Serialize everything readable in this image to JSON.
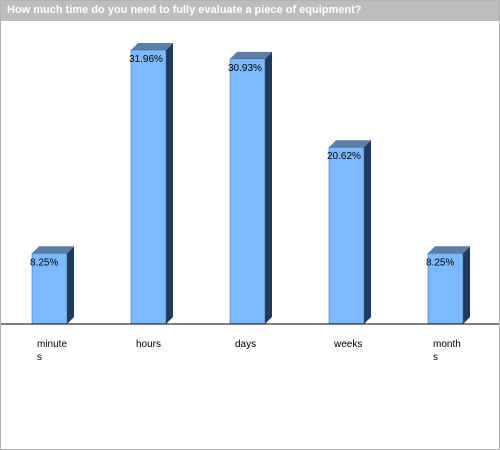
{
  "window": {
    "title": "How much time do you need to fully evaluate a piece of equipment?"
  },
  "colors": {
    "bar_front": "#7cb9ff",
    "bar_side": "#1f3a5c",
    "bar_top": "#5c7fa8",
    "title_bar": "#bdbdbd",
    "axis": "#000000"
  },
  "chart_data": {
    "type": "bar",
    "title": "How much time do you need to fully evaluate a piece of equipment?",
    "categories": [
      "minutes",
      "hours",
      "days",
      "weeks",
      "months"
    ],
    "tick_label_lines": [
      [
        "minute",
        "s"
      ],
      [
        "hours"
      ],
      [
        "days"
      ],
      [
        "weeks"
      ],
      [
        "month",
        "s"
      ]
    ],
    "values": [
      8.25,
      31.96,
      30.93,
      20.62,
      8.25
    ],
    "data_labels": [
      "8.25%",
      "31.96%",
      "30.93%",
      "20.62%",
      "8.25%"
    ],
    "unit": "%",
    "ylim": [
      0,
      35
    ],
    "grid": false,
    "legend": "none"
  }
}
